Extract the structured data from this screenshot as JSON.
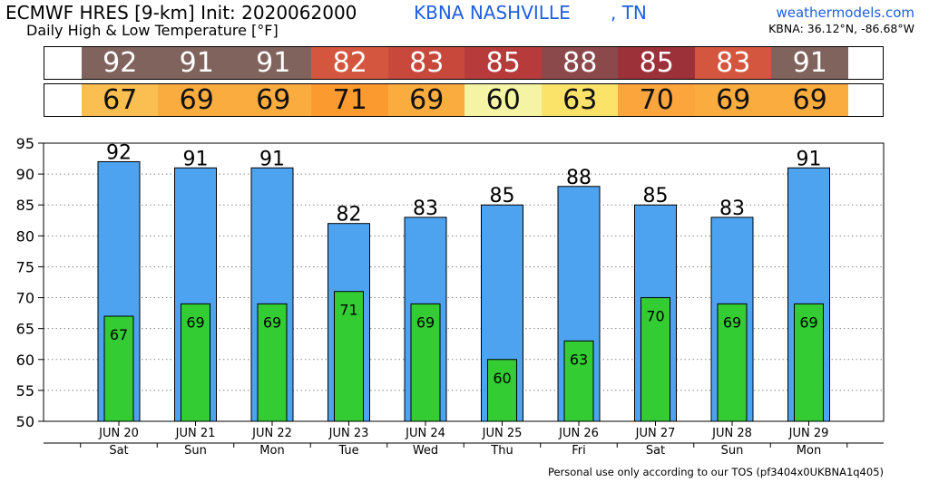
{
  "header": {
    "model_title": "ECMWF HRES [9-km] Init: 2020062000",
    "subtitle": "Daily High & Low Temperature [°F]",
    "station": "KBNA NASHVILLE",
    "station_state": ", TN",
    "brand": "weathermodels.com",
    "coords": "KBNA: 36.12°N, -86.68°W"
  },
  "colors": {
    "high_bar": "#4ea3f1",
    "low_bar": "#33cc33",
    "high_cells": [
      "#81635e",
      "#81635e",
      "#81635e",
      "#d5563f",
      "#c8483c",
      "#b83b3b",
      "#8c494c",
      "#9c3139",
      "#d5563f",
      "#81635e"
    ],
    "low_cells": [
      "#fbbe50",
      "#fbac3f",
      "#fbac3f",
      "#fb9a2f",
      "#fbac3f",
      "#f4f4a4",
      "#fbe36a",
      "#fba53c",
      "#fbac3f",
      "#fbac3f"
    ]
  },
  "chart_data": {
    "type": "bar",
    "categories": [
      "JUN 20",
      "JUN 21",
      "JUN 22",
      "JUN 23",
      "JUN 24",
      "JUN 25",
      "JUN 26",
      "JUN 27",
      "JUN 28",
      "JUN 29"
    ],
    "weekdays": [
      "Sat",
      "Sun",
      "Mon",
      "Tue",
      "Wed",
      "Thu",
      "Fri",
      "Sat",
      "Sun",
      "Mon"
    ],
    "series": [
      {
        "values": [
          92,
          91,
          91,
          82,
          83,
          85,
          88,
          85,
          83,
          91
        ]
      },
      {
        "values": [
          67,
          69,
          69,
          71,
          69,
          60,
          63,
          70,
          69,
          69
        ]
      }
    ],
    "ylim": [
      50,
      95
    ],
    "yticks": [
      50,
      55,
      60,
      65,
      70,
      75,
      80,
      85,
      90,
      95
    ],
    "grid": true
  },
  "footer": "Personal use only according to our TOS (pf3404x0UKBNA1q405)"
}
